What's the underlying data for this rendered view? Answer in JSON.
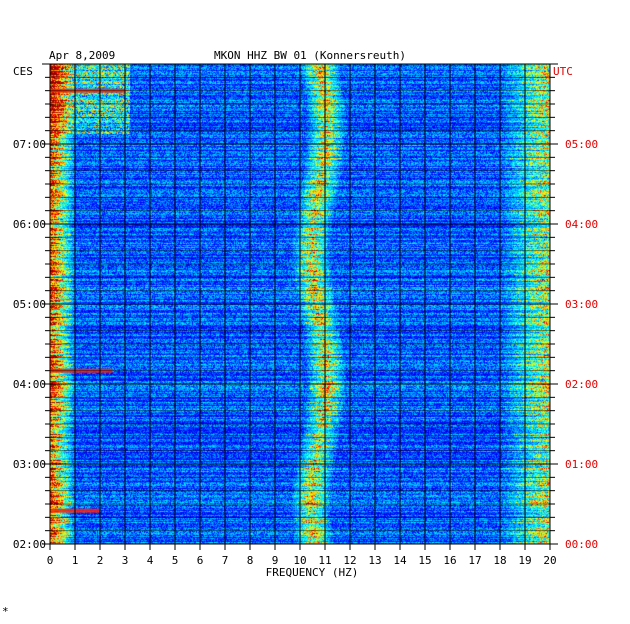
{
  "chart_data": {
    "type": "heatmap",
    "date": "Apr 8,2009",
    "title": "MKON HHZ BW 01 (Konnersreuth)",
    "left_axis_label": "CES",
    "right_axis_label": "UTC",
    "xlabel": "FREQUENCY (HZ)",
    "x_ticks": [
      "0",
      "1",
      "2",
      "3",
      "4",
      "5",
      "6",
      "7",
      "8",
      "9",
      "10",
      "11",
      "12",
      "13",
      "14",
      "15",
      "16",
      "17",
      "18",
      "19",
      "20"
    ],
    "xlim": [
      0,
      20
    ],
    "y_ticks_left": [
      "07:00",
      "06:00",
      "05:00",
      "04:00",
      "03:00",
      "02:00"
    ],
    "y_ticks_right": [
      "05:00",
      "04:00",
      "03:00",
      "02:00",
      "01:00",
      "00:00"
    ],
    "time_range_ces": [
      "02:00",
      "08:00"
    ],
    "colormap": [
      "#00008f",
      "#0000ff",
      "#00a0ff",
      "#00ffff",
      "#ffff00",
      "#ff8000",
      "#ff0000",
      "#8f0000"
    ],
    "high_energy_bands_hz": [
      [
        0,
        1
      ],
      [
        10,
        11.5
      ],
      [
        18,
        20
      ]
    ],
    "events_ces": [
      {
        "time": "07:40",
        "freq_hz": [
          0,
          3
        ]
      },
      {
        "time": "04:10",
        "freq_hz": [
          0,
          2.5
        ]
      },
      {
        "time": "02:25",
        "freq_hz": [
          0,
          2
        ]
      }
    ],
    "footer_mark": "*"
  }
}
